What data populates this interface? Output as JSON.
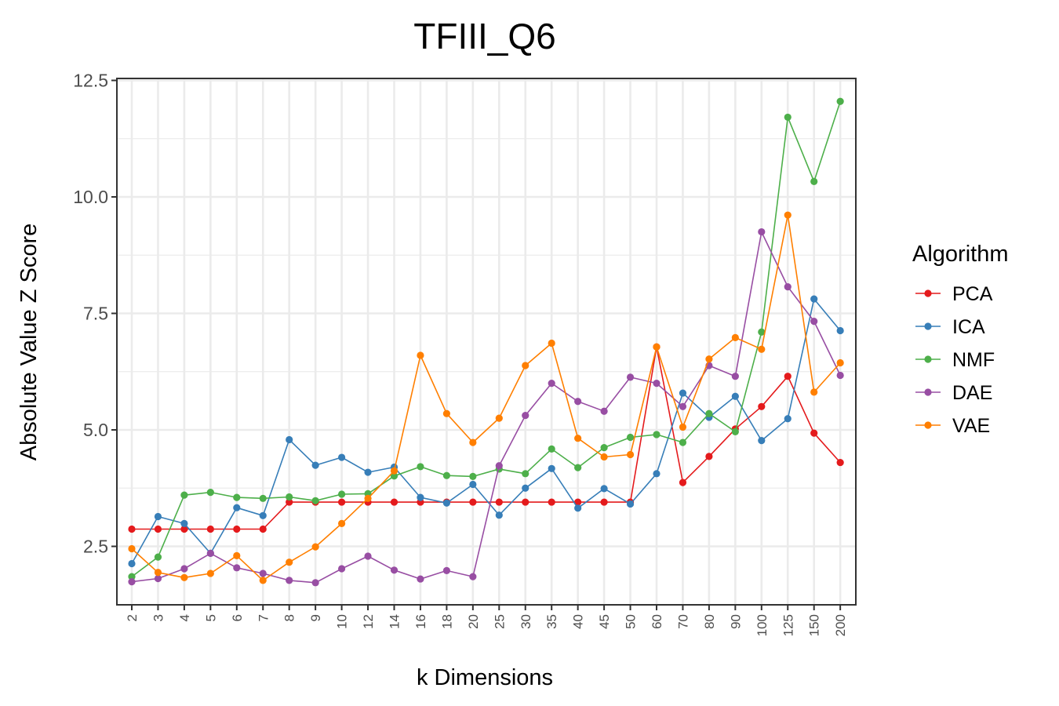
{
  "chart_data": {
    "type": "line",
    "title": "TFIII_Q6",
    "xlabel": "k Dimensions",
    "ylabel": "Absolute Value Z Score",
    "categories": [
      "2",
      "3",
      "4",
      "5",
      "6",
      "7",
      "8",
      "9",
      "10",
      "12",
      "14",
      "16",
      "18",
      "20",
      "25",
      "30",
      "35",
      "40",
      "45",
      "50",
      "60",
      "70",
      "80",
      "90",
      "100",
      "125",
      "150",
      "200"
    ],
    "yticks": [
      2.5,
      5.0,
      7.5,
      10.0,
      12.5
    ],
    "ytick_labels": [
      "2.5",
      "5.0",
      "7.5",
      "10.0",
      "12.5"
    ],
    "ylim": [
      1.3,
      12.55
    ],
    "grid": true,
    "legend_title": "Algorithm",
    "legend_position": "right",
    "series": [
      {
        "name": "PCA",
        "color": "#e41a1c",
        "values": [
          2.87,
          2.87,
          2.87,
          2.87,
          2.87,
          2.87,
          3.45,
          3.45,
          3.45,
          3.45,
          3.45,
          3.45,
          3.45,
          3.45,
          3.45,
          3.45,
          3.45,
          3.45,
          3.45,
          3.45,
          6.78,
          3.87,
          4.43,
          5.02,
          5.5,
          6.15,
          4.93,
          4.3
        ]
      },
      {
        "name": "ICA",
        "color": "#377eb8",
        "values": [
          2.13,
          3.14,
          2.99,
          2.35,
          3.33,
          3.16,
          4.79,
          4.24,
          4.41,
          4.09,
          4.2,
          3.55,
          3.43,
          3.83,
          3.17,
          3.75,
          4.17,
          3.32,
          3.74,
          3.41,
          4.06,
          5.79,
          5.27,
          5.72,
          4.77,
          5.24,
          7.81,
          7.13
        ]
      },
      {
        "name": "NMF",
        "color": "#4daf4a",
        "values": [
          1.85,
          2.27,
          3.6,
          3.66,
          3.55,
          3.53,
          3.56,
          3.48,
          3.62,
          3.63,
          4.01,
          4.21,
          4.02,
          4.0,
          4.16,
          4.06,
          4.59,
          4.19,
          4.62,
          4.84,
          4.9,
          4.73,
          5.35,
          4.96,
          7.1,
          11.71,
          10.33,
          12.05
        ]
      },
      {
        "name": "DAE",
        "color": "#984ea3",
        "values": [
          1.74,
          1.81,
          2.02,
          2.35,
          2.04,
          1.92,
          1.77,
          1.72,
          2.02,
          2.29,
          1.99,
          1.8,
          1.98,
          1.85,
          4.23,
          5.31,
          6.0,
          5.61,
          5.4,
          6.13,
          6.0,
          5.5,
          6.38,
          6.15,
          9.25,
          8.07,
          7.33,
          6.17
        ]
      },
      {
        "name": "VAE",
        "color": "#ff7f00",
        "values": [
          2.45,
          1.94,
          1.83,
          1.92,
          2.3,
          1.77,
          2.16,
          2.49,
          2.99,
          3.53,
          4.12,
          6.6,
          5.35,
          4.73,
          5.25,
          6.38,
          6.86,
          4.82,
          4.42,
          4.47,
          6.78,
          5.06,
          6.52,
          6.98,
          6.73,
          9.61,
          5.81,
          6.44
        ]
      }
    ]
  }
}
